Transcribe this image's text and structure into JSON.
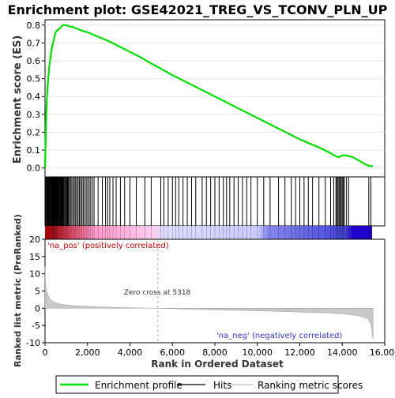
{
  "chart_data": {
    "type": "line",
    "title": "Enrichment plot: GSE42021_TREG_VS_TCONV_PLN_UP",
    "xlabel": "Rank in Ordered Dataset",
    "es_panel": {
      "ylabel": "Enrichment score (ES)",
      "ylim": [
        -0.05,
        0.83
      ],
      "yticks": [
        "0.0",
        "0.1",
        "0.2",
        "0.3",
        "0.4",
        "0.5",
        "0.6",
        "0.7",
        "0.8"
      ],
      "series": [
        {
          "name": "Enrichment profile",
          "color": "#00dd00",
          "x": [
            0,
            30,
            60,
            100,
            150,
            200,
            250,
            300,
            350,
            400,
            450,
            500,
            550,
            600,
            650,
            700,
            750,
            800,
            850,
            900,
            950,
            1000,
            1100,
            1200,
            1300,
            1500,
            1700,
            2000,
            2300,
            2600,
            3000,
            3500,
            4000,
            4500,
            5000,
            5318,
            6000,
            7000,
            8000,
            9000,
            10000,
            11000,
            12000,
            13000,
            13500,
            13700,
            13850,
            14000,
            14200,
            14500,
            14800,
            15100,
            15300,
            15450
          ],
          "y": [
            0.0,
            0.15,
            0.3,
            0.42,
            0.5,
            0.57,
            0.61,
            0.66,
            0.69,
            0.71,
            0.74,
            0.76,
            0.77,
            0.77,
            0.78,
            0.78,
            0.79,
            0.795,
            0.8,
            0.8,
            0.8,
            0.8,
            0.795,
            0.79,
            0.79,
            0.78,
            0.77,
            0.76,
            0.745,
            0.73,
            0.71,
            0.68,
            0.65,
            0.62,
            0.585,
            0.565,
            0.52,
            0.46,
            0.4,
            0.34,
            0.28,
            0.22,
            0.16,
            0.11,
            0.08,
            0.065,
            0.06,
            0.07,
            0.07,
            0.06,
            0.04,
            0.02,
            0.01,
            0.01
          ]
        }
      ]
    },
    "hits_panel": {
      "series_name": "Hits",
      "pos_label": "'na_pos' (positively correlated)",
      "neg_label": "'na_neg' (negatively correlated)",
      "hits": [
        20,
        60,
        90,
        120,
        150,
        180,
        210,
        240,
        270,
        300,
        320,
        340,
        360,
        380,
        400,
        420,
        440,
        460,
        480,
        500,
        520,
        540,
        560,
        580,
        600,
        630,
        660,
        690,
        720,
        750,
        780,
        810,
        840,
        870,
        900,
        940,
        980,
        1020,
        1060,
        1100,
        1150,
        1200,
        1260,
        1320,
        1380,
        1440,
        1500,
        1560,
        1620,
        1680,
        1740,
        1800,
        1870,
        1940,
        2010,
        2080,
        2150,
        2230,
        2310,
        2500,
        2700,
        2850,
        2950,
        3050,
        3200,
        3350,
        3550,
        3750,
        4000,
        4300,
        4700,
        5000,
        5450,
        5600,
        5800,
        6000,
        6150,
        6300,
        6500,
        6700,
        6900,
        7100,
        7400,
        7600,
        7800,
        8000,
        8200,
        8400,
        8550,
        8700,
        8900,
        9100,
        9300,
        9500,
        9700,
        10000,
        10300,
        10600,
        11000,
        11300,
        11600,
        11800,
        12000,
        12200,
        12400,
        12600,
        12900,
        13200,
        13450,
        13600,
        13700,
        13750,
        13800,
        13850,
        13900,
        13950,
        14000,
        14050,
        14100,
        14200,
        14300,
        15250,
        15350
      ],
      "color_bar_stops": [
        "#dd0000",
        "#ff99dd",
        "#ccccff",
        "#2222dd"
      ]
    },
    "metric_panel": {
      "ylabel": "Ranked list metric (PreRanked)",
      "ylim": [
        -10,
        20
      ],
      "yticks": [
        "-10",
        "-5",
        "0",
        "5",
        "10",
        "15",
        "20"
      ],
      "zero_cross": 5318,
      "zero_cross_label": "Zero cross at 5318",
      "x": [
        0,
        20,
        50,
        100,
        200,
        300,
        500,
        800,
        1200,
        2000,
        3000,
        4000,
        5318,
        7000,
        9000,
        11000,
        13000,
        14000,
        14800,
        15200,
        15350,
        15400,
        15450
      ],
      "y": [
        12,
        8,
        6,
        4.5,
        3,
        2.3,
        1.6,
        1.1,
        0.8,
        0.5,
        0.3,
        0.15,
        0,
        -0.3,
        -0.6,
        -0.9,
        -1.3,
        -1.6,
        -2.2,
        -3,
        -4.5,
        -6.5,
        -9
      ]
    },
    "xlim": [
      0,
      16000
    ],
    "xticks": [
      "0",
      "2,000",
      "4,000",
      "6,000",
      "8,000",
      "10,000",
      "12,000",
      "14,000",
      "16,000"
    ],
    "legend": {
      "placement": "bottom",
      "items": [
        {
          "label": "Enrichment profile",
          "color": "#00dd00"
        },
        {
          "label": "Hits",
          "color": "#000000"
        },
        {
          "label": "Ranking metric scores",
          "color": "#bbbbbb"
        }
      ]
    }
  }
}
